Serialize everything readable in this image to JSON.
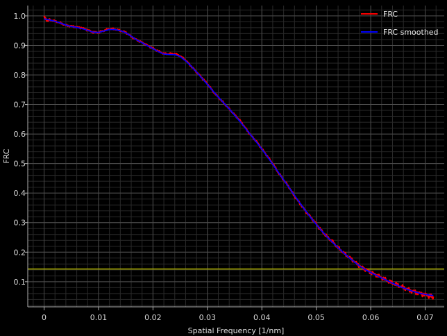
{
  "chart_data": {
    "type": "line",
    "title": "",
    "xlabel": "Spatial Frequency [1/nm]",
    "ylabel": "FRC",
    "xlim": [
      -0.003,
      0.0735
    ],
    "ylim": [
      0.015,
      1.035
    ],
    "x_ticks": [
      0,
      0.01,
      0.02,
      0.03,
      0.04,
      0.05,
      0.06,
      0.07
    ],
    "x_tick_labels": [
      "0",
      "0.01",
      "0.02",
      "0.03",
      "0.04",
      "0.05",
      "0.06",
      "0.07"
    ],
    "y_ticks": [
      0.1,
      0.2,
      0.3,
      0.4,
      0.5,
      0.6,
      0.7,
      0.8,
      0.9,
      1.0
    ],
    "y_tick_labels": [
      "0.1",
      "0.2",
      "0.3",
      "0.4",
      "0.5",
      "0.6",
      "0.7",
      "0.8",
      "0.9",
      "1.0"
    ],
    "grid": true,
    "legend_position": "top-right",
    "threshold": {
      "y": 0.143,
      "color": "#b5b800"
    },
    "series": [
      {
        "name": "FRC",
        "color": "#ff0000",
        "points": [
          [
            0.0,
            1.0
          ],
          [
            0.0005,
            0.983
          ],
          [
            0.001,
            0.987
          ],
          [
            0.002,
            0.982
          ],
          [
            0.003,
            0.976
          ],
          [
            0.004,
            0.968
          ],
          [
            0.005,
            0.965
          ],
          [
            0.006,
            0.962
          ],
          [
            0.007,
            0.959
          ],
          [
            0.008,
            0.952
          ],
          [
            0.009,
            0.945
          ],
          [
            0.01,
            0.944
          ],
          [
            0.011,
            0.95
          ],
          [
            0.012,
            0.956
          ],
          [
            0.013,
            0.955
          ],
          [
            0.014,
            0.95
          ],
          [
            0.015,
            0.944
          ],
          [
            0.016,
            0.93
          ],
          [
            0.017,
            0.919
          ],
          [
            0.018,
            0.91
          ],
          [
            0.019,
            0.9
          ],
          [
            0.02,
            0.89
          ],
          [
            0.021,
            0.88
          ],
          [
            0.022,
            0.872
          ],
          [
            0.023,
            0.871
          ],
          [
            0.024,
            0.872
          ],
          [
            0.025,
            0.864
          ],
          [
            0.026,
            0.85
          ],
          [
            0.027,
            0.83
          ],
          [
            0.028,
            0.81
          ],
          [
            0.029,
            0.79
          ],
          [
            0.03,
            0.77
          ],
          [
            0.031,
            0.745
          ],
          [
            0.032,
            0.725
          ],
          [
            0.033,
            0.705
          ],
          [
            0.034,
            0.685
          ],
          [
            0.035,
            0.665
          ],
          [
            0.036,
            0.645
          ],
          [
            0.037,
            0.62
          ],
          [
            0.038,
            0.595
          ],
          [
            0.039,
            0.575
          ],
          [
            0.04,
            0.55
          ],
          [
            0.041,
            0.525
          ],
          [
            0.042,
            0.5
          ],
          [
            0.043,
            0.47
          ],
          [
            0.044,
            0.445
          ],
          [
            0.045,
            0.42
          ],
          [
            0.046,
            0.39
          ],
          [
            0.047,
            0.365
          ],
          [
            0.048,
            0.34
          ],
          [
            0.049,
            0.318
          ],
          [
            0.05,
            0.295
          ],
          [
            0.051,
            0.272
          ],
          [
            0.052,
            0.252
          ],
          [
            0.053,
            0.235
          ],
          [
            0.054,
            0.215
          ],
          [
            0.055,
            0.198
          ],
          [
            0.056,
            0.183
          ],
          [
            0.057,
            0.168
          ],
          [
            0.058,
            0.153
          ],
          [
            0.059,
            0.142
          ],
          [
            0.06,
            0.132
          ],
          [
            0.061,
            0.123
          ],
          [
            0.062,
            0.114
          ],
          [
            0.063,
            0.104
          ],
          [
            0.064,
            0.095
          ],
          [
            0.065,
            0.088
          ],
          [
            0.066,
            0.08
          ],
          [
            0.067,
            0.072
          ],
          [
            0.068,
            0.066
          ],
          [
            0.069,
            0.061
          ],
          [
            0.07,
            0.056
          ],
          [
            0.071,
            0.052
          ],
          [
            0.0715,
            0.05
          ]
        ]
      },
      {
        "name": "FRC smoothed",
        "color": "#0000ff",
        "points": [
          [
            0.0,
            0.99
          ],
          [
            0.001,
            0.986
          ],
          [
            0.002,
            0.982
          ],
          [
            0.003,
            0.976
          ],
          [
            0.004,
            0.969
          ],
          [
            0.005,
            0.964
          ],
          [
            0.006,
            0.961
          ],
          [
            0.007,
            0.957
          ],
          [
            0.008,
            0.951
          ],
          [
            0.009,
            0.945
          ],
          [
            0.01,
            0.944
          ],
          [
            0.011,
            0.949
          ],
          [
            0.012,
            0.954
          ],
          [
            0.013,
            0.954
          ],
          [
            0.014,
            0.95
          ],
          [
            0.015,
            0.943
          ],
          [
            0.016,
            0.931
          ],
          [
            0.017,
            0.919
          ],
          [
            0.018,
            0.909
          ],
          [
            0.019,
            0.899
          ],
          [
            0.02,
            0.889
          ],
          [
            0.021,
            0.879
          ],
          [
            0.022,
            0.871
          ],
          [
            0.023,
            0.869
          ],
          [
            0.024,
            0.869
          ],
          [
            0.025,
            0.862
          ],
          [
            0.026,
            0.848
          ],
          [
            0.027,
            0.83
          ],
          [
            0.028,
            0.81
          ],
          [
            0.029,
            0.789
          ],
          [
            0.03,
            0.768
          ],
          [
            0.031,
            0.746
          ],
          [
            0.032,
            0.725
          ],
          [
            0.033,
            0.705
          ],
          [
            0.034,
            0.685
          ],
          [
            0.035,
            0.664
          ],
          [
            0.036,
            0.642
          ],
          [
            0.037,
            0.619
          ],
          [
            0.038,
            0.596
          ],
          [
            0.039,
            0.573
          ],
          [
            0.04,
            0.549
          ],
          [
            0.041,
            0.524
          ],
          [
            0.042,
            0.498
          ],
          [
            0.043,
            0.471
          ],
          [
            0.044,
            0.445
          ],
          [
            0.045,
            0.419
          ],
          [
            0.046,
            0.392
          ],
          [
            0.047,
            0.366
          ],
          [
            0.048,
            0.341
          ],
          [
            0.049,
            0.317
          ],
          [
            0.05,
            0.294
          ],
          [
            0.051,
            0.272
          ],
          [
            0.052,
            0.252
          ],
          [
            0.053,
            0.233
          ],
          [
            0.054,
            0.215
          ],
          [
            0.055,
            0.198
          ],
          [
            0.056,
            0.182
          ],
          [
            0.057,
            0.167
          ],
          [
            0.058,
            0.153
          ],
          [
            0.059,
            0.141
          ],
          [
            0.06,
            0.131
          ],
          [
            0.061,
            0.122
          ],
          [
            0.062,
            0.113
          ],
          [
            0.063,
            0.104
          ],
          [
            0.064,
            0.095
          ],
          [
            0.065,
            0.087
          ],
          [
            0.066,
            0.079
          ],
          [
            0.067,
            0.072
          ],
          [
            0.068,
            0.066
          ],
          [
            0.069,
            0.061
          ],
          [
            0.07,
            0.057
          ],
          [
            0.071,
            0.054
          ],
          [
            0.0715,
            0.053
          ]
        ]
      }
    ]
  }
}
